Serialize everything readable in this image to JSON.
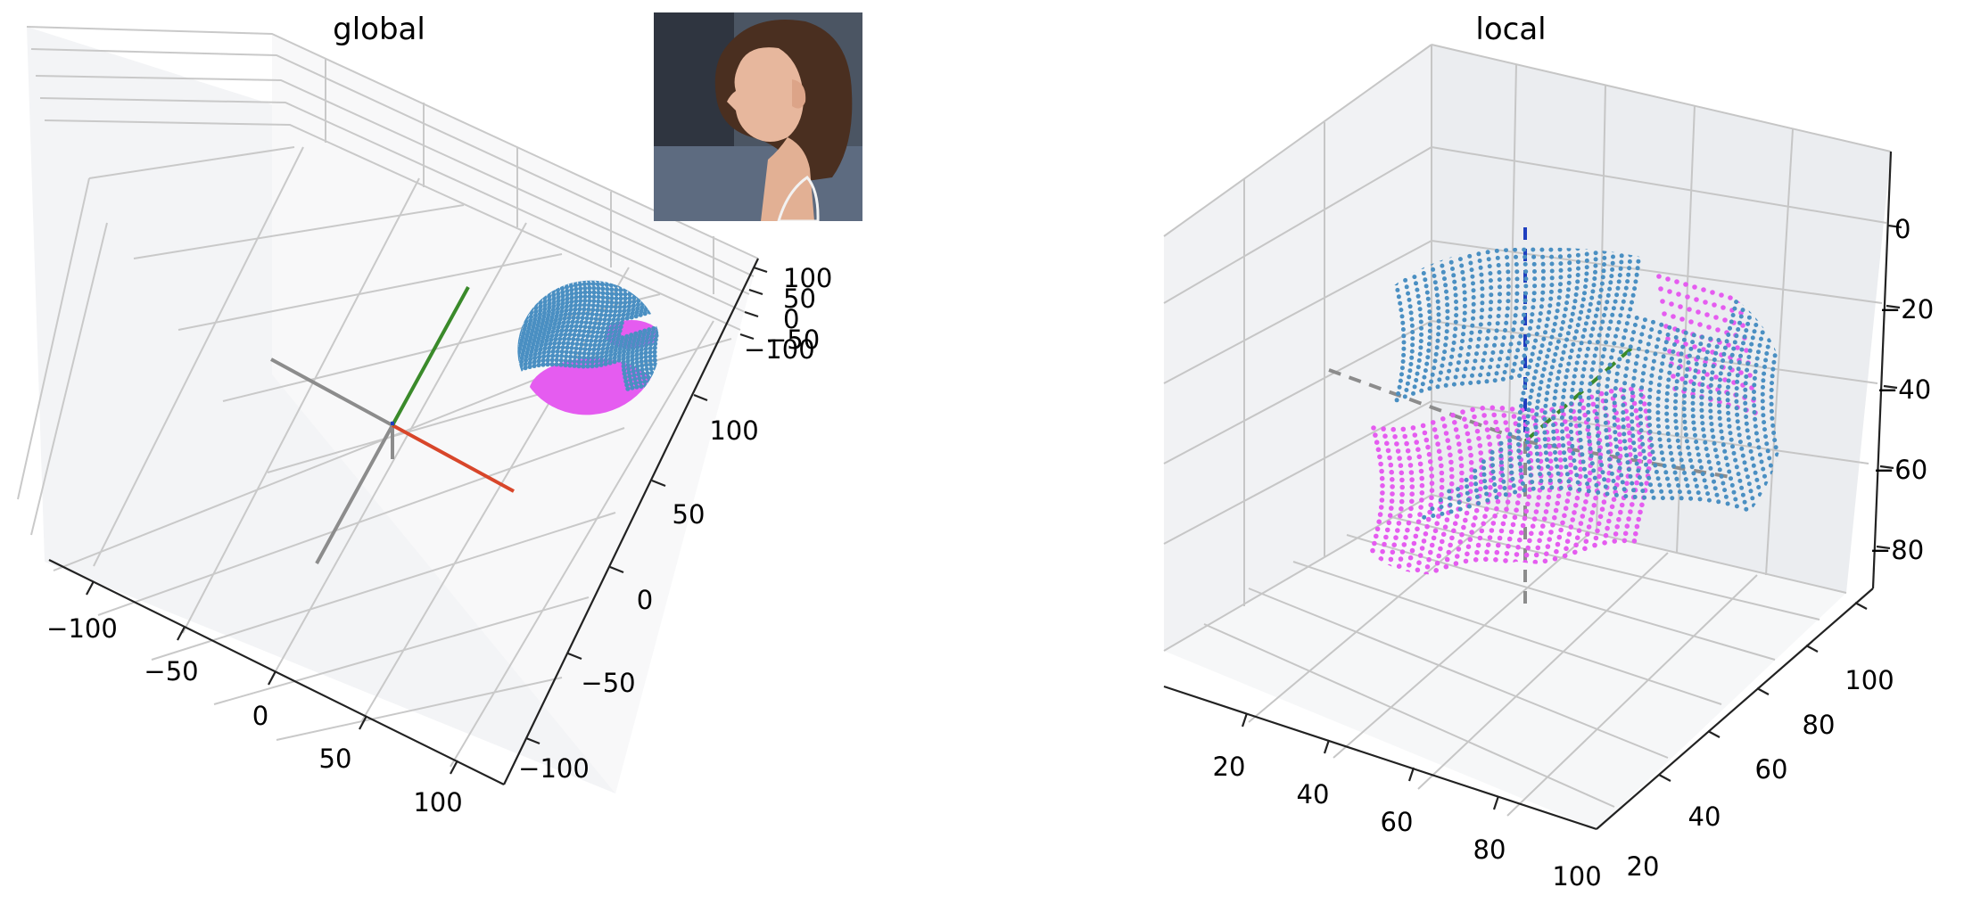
{
  "chart_data": [
    {
      "type": "scatter",
      "projection": "3d",
      "title": "global",
      "xlabel": "",
      "ylabel": "",
      "zlabel": "",
      "x_ticks": [
        "−100",
        "−50",
        "0",
        "50",
        "100"
      ],
      "y_ticks": [
        "−100",
        "−50",
        "0",
        "50",
        "100"
      ],
      "z_ticks": [
        "100",
        "50",
        "0",
        "−50",
        "−100"
      ],
      "xlim": [
        -125,
        125
      ],
      "ylim": [
        -125,
        125
      ],
      "zlim": [
        -125,
        125
      ],
      "grid": true,
      "axes_lines": [
        {
          "name": "x",
          "color": "#d8462a",
          "from": [
            0,
            0,
            0
          ],
          "to": [
            100,
            0,
            0
          ]
        },
        {
          "name": "y",
          "color": "#3a8a2a",
          "from": [
            0,
            0,
            0
          ],
          "to": [
            0,
            100,
            0
          ]
        },
        {
          "name": "z",
          "color": "#1f3fbf",
          "from": [
            0,
            0,
            0
          ],
          "to": [
            0,
            0,
            15
          ]
        },
        {
          "name": "-x",
          "color": "#8c8c8c",
          "from": [
            0,
            0,
            0
          ],
          "to": [
            -100,
            0,
            0
          ]
        },
        {
          "name": "-y",
          "color": "#8c8c8c",
          "from": [
            0,
            0,
            0
          ],
          "to": [
            0,
            -100,
            0
          ]
        }
      ],
      "series": [
        {
          "color": "#4a8fc2",
          "x_range": [
            55,
            110
          ],
          "y_range": [
            20,
            80
          ],
          "z_range": [
            -60,
            40
          ]
        },
        {
          "color": "#e55cf0",
          "x_range": [
            55,
            105
          ],
          "y_range": [
            15,
            60
          ],
          "z_range": [
            -60,
            -20
          ]
        }
      ],
      "inset_image": "profile-photo"
    },
    {
      "type": "scatter",
      "projection": "3d",
      "title": "local",
      "xlabel": "",
      "ylabel": "",
      "zlabel": "",
      "x_ticks": [
        "20",
        "40",
        "60",
        "80",
        "100"
      ],
      "y_ticks": [
        "20",
        "40",
        "60",
        "80",
        "100"
      ],
      "z_ticks": [
        "0",
        "−20",
        "−40",
        "−60",
        "−80"
      ],
      "xlim": [
        5,
        105
      ],
      "ylim": [
        10,
        115
      ],
      "zlim": [
        -90,
        10
      ],
      "grid": true,
      "axes_lines": [
        {
          "name": "x",
          "style": "dashed",
          "color": "#8c8c8c"
        },
        {
          "name": "y",
          "style": "dashed",
          "color": "#3a8a2a"
        },
        {
          "name": "z",
          "style": "dashed",
          "color": "#1f3fbf"
        }
      ],
      "series": [
        {
          "color": "#4a8fc2",
          "x_range": [
            25,
            100
          ],
          "y_range": [
            30,
            110
          ],
          "z_range": [
            -80,
            0
          ]
        },
        {
          "color": "#e55cf0",
          "x_range": [
            15,
            70
          ],
          "y_range": [
            20,
            80
          ],
          "z_range": [
            -85,
            -35
          ]
        }
      ]
    }
  ]
}
